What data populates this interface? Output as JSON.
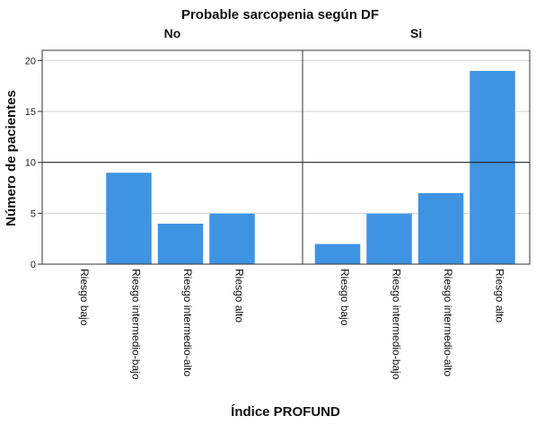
{
  "chart_data": {
    "type": "bar",
    "title": "Probable sarcopenia según DF",
    "xlabel": "Índice PROFUND",
    "ylabel": "Número de pacientes",
    "ylim": [
      0,
      21
    ],
    "yticks": [
      0,
      5,
      10,
      15,
      20
    ],
    "reference_line": 10,
    "grid": true,
    "categories": [
      "Riesgo bajo",
      "Riesgo intermedio-bajo",
      "Riesgo intermedio-alto",
      "Riesgo alto"
    ],
    "panels": [
      {
        "name": "No",
        "values": [
          0,
          9,
          4,
          5
        ]
      },
      {
        "name": "Si",
        "values": [
          2,
          5,
          7,
          19
        ]
      }
    ],
    "colors": {
      "bar": "#3f93e3",
      "grid": "#cfcfcf",
      "refline": "#222222",
      "frame": "#333333"
    }
  }
}
